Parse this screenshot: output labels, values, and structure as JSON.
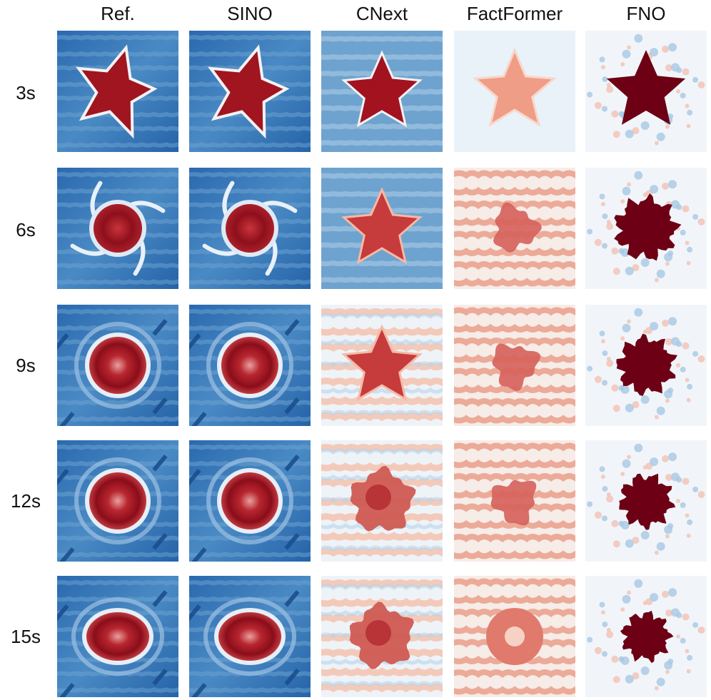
{
  "columns": [
    {
      "label": "Ref.",
      "field": "ref"
    },
    {
      "label": "SINO",
      "field": "sino"
    },
    {
      "label": "CNext",
      "field": "cnext"
    },
    {
      "label": "FactFormer",
      "field": "factformer"
    },
    {
      "label": "FNO",
      "field": "fno"
    }
  ],
  "rows": [
    {
      "label": "3s"
    },
    {
      "label": "6s"
    },
    {
      "label": "9s"
    },
    {
      "label": "12s"
    },
    {
      "label": "15s"
    }
  ],
  "colormap": {
    "high": "#8b0a1a",
    "mid": "#f7f7f7",
    "low": "#1f5fa8"
  }
}
